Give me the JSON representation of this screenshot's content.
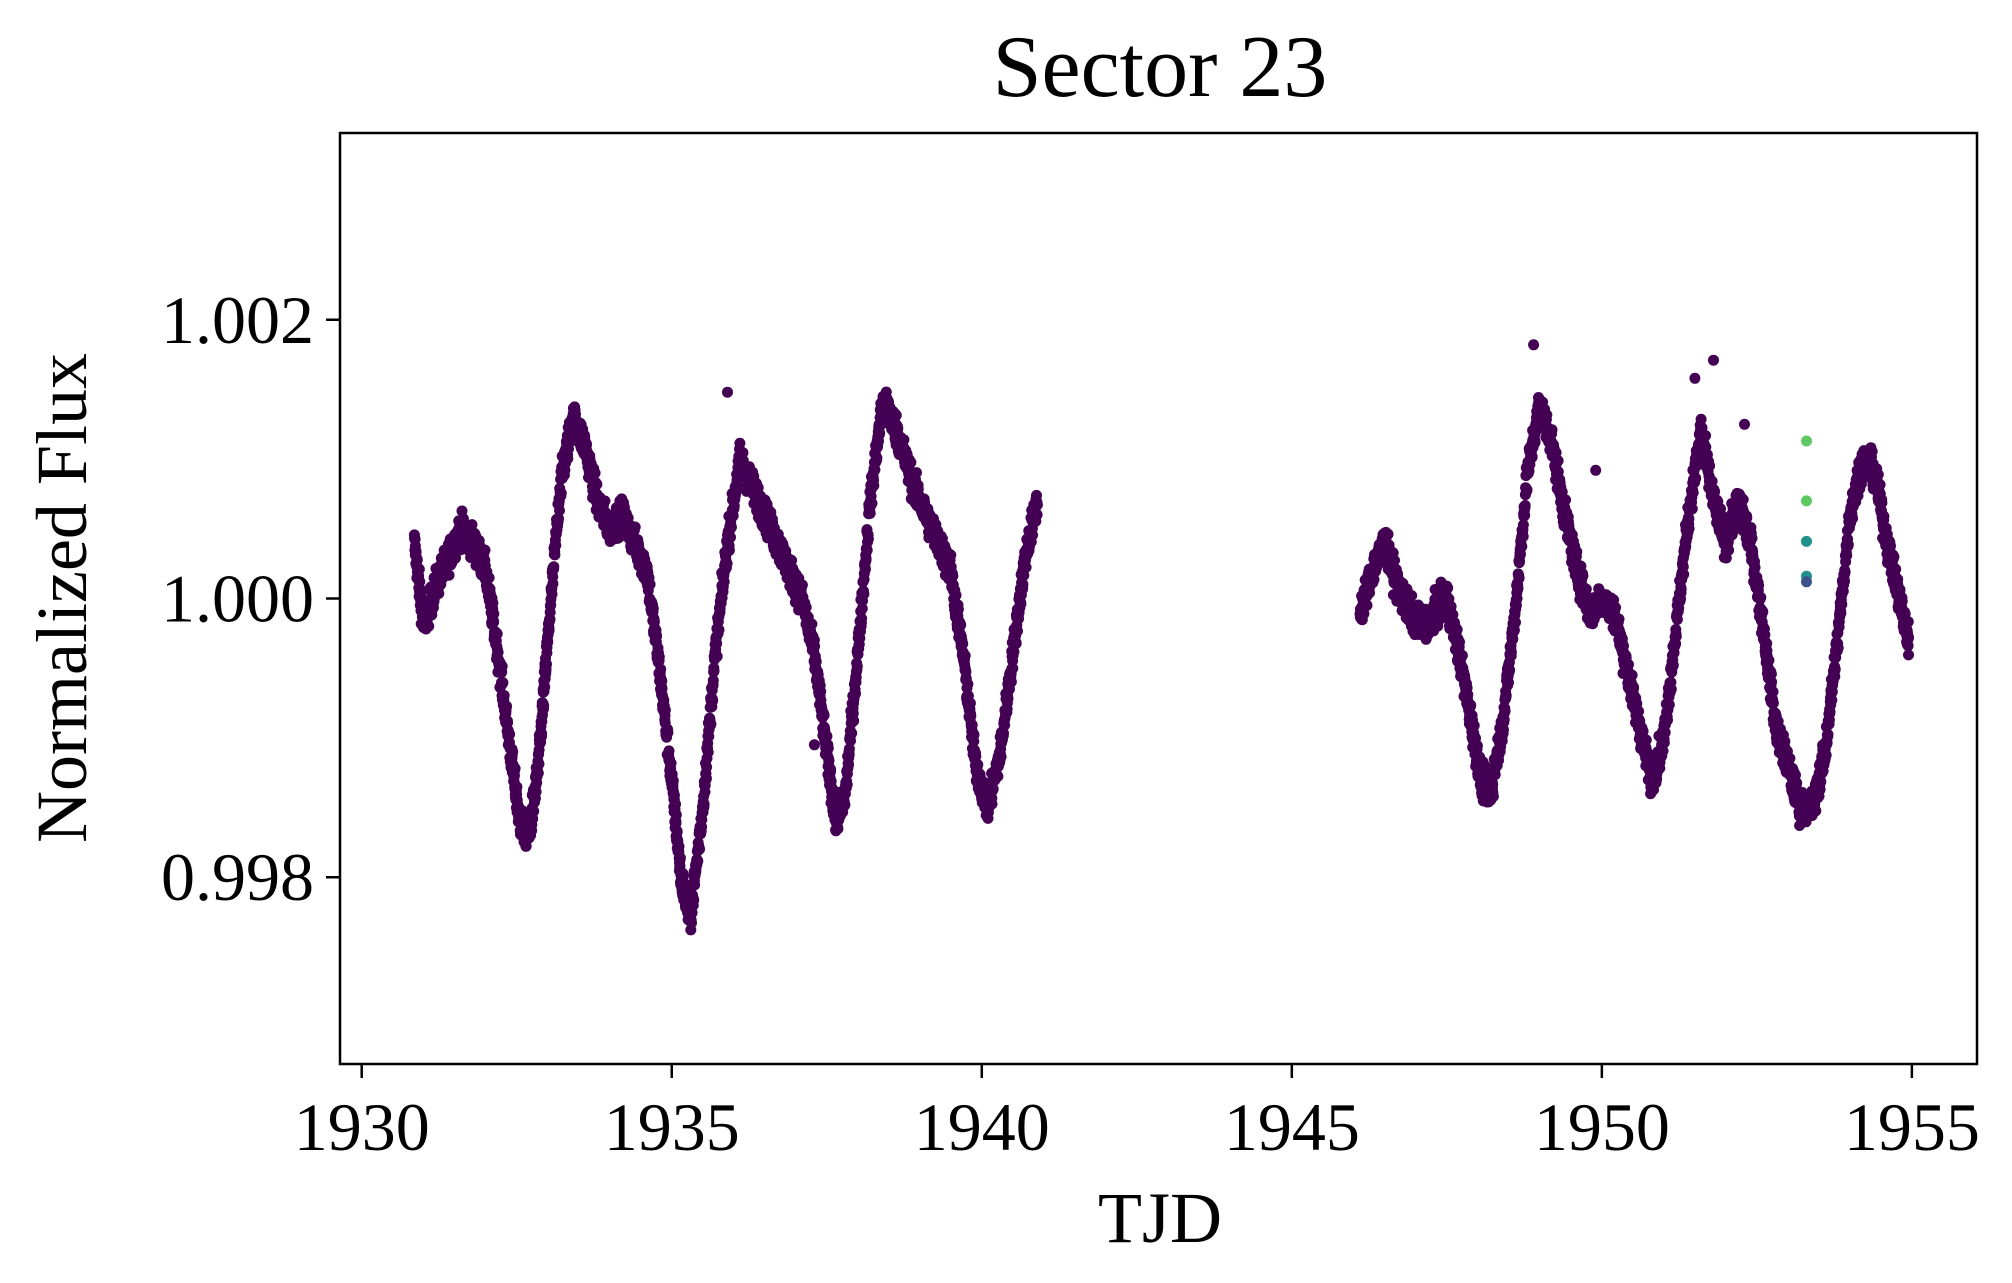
{
  "chart_data": {
    "type": "scatter",
    "title": "Sector 23",
    "xlabel": "TJD",
    "ylabel": "Normalized Flux",
    "xlim": [
      1929.65,
      1956.05
    ],
    "ylim": [
      0.99666,
      1.00334
    ],
    "xticks": [
      {
        "value": 1930,
        "label": "1930"
      },
      {
        "value": 1935,
        "label": "1935"
      },
      {
        "value": 1940,
        "label": "1940"
      },
      {
        "value": 1945,
        "label": "1945"
      },
      {
        "value": 1950,
        "label": "1950"
      },
      {
        "value": 1955,
        "label": "1955"
      }
    ],
    "yticks": [
      {
        "value": 0.998,
        "label": "0.998"
      },
      {
        "value": 1.0,
        "label": "1.000"
      },
      {
        "value": 1.002,
        "label": "1.002"
      }
    ],
    "grid": false,
    "legend": "none",
    "colormap": [
      "#440154",
      "#3b528b",
      "#21918c",
      "#5ec962"
    ],
    "point_color": "#440154",
    "series": [
      {
        "x": [
          1930.85,
          1931.0,
          1931.2,
          1931.4,
          1931.6,
          1931.8,
          1932.0,
          1932.2,
          1932.4,
          1932.55,
          1932.7,
          1932.85,
          1933.0,
          1933.2,
          1933.4,
          1933.6,
          1933.8,
          1934.0,
          1934.2,
          1934.4,
          1934.6,
          1934.8,
          1935.0,
          1935.15,
          1935.3,
          1935.5,
          1935.7,
          1935.9,
          1936.1,
          1936.3,
          1936.5,
          1936.7,
          1936.9,
          1937.1,
          1937.3,
          1937.5,
          1937.65,
          1937.8,
          1938.0,
          1938.2,
          1938.4,
          1938.55,
          1938.7,
          1938.9,
          1939.1,
          1939.3,
          1939.5,
          1939.7,
          1939.9,
          1940.1,
          1940.3,
          1940.5,
          1940.7,
          1940.9
        ],
        "y": [
          1.0004,
          0.9998,
          1.0001,
          1.0003,
          1.0005,
          1.0004,
          1.0002,
          0.9996,
          0.9989,
          0.9984,
          0.9983,
          0.9988,
          0.9997,
          1.0008,
          1.0013,
          1.0011,
          1.0007,
          1.0005,
          1.0006,
          1.0004,
          1.0002,
          0.9995,
          0.9987,
          0.998,
          0.9977,
          0.9985,
          0.9996,
          1.0004,
          1.001,
          1.0008,
          1.0006,
          1.0004,
          1.0002,
          1.0,
          0.9996,
          0.9989,
          0.9984,
          0.9986,
          0.9996,
          1.0007,
          1.0014,
          1.0013,
          1.0011,
          1.0008,
          1.0006,
          1.0004,
          1.0002,
          0.9996,
          0.9988,
          0.9985,
          0.9989,
          0.9996,
          1.0003,
          1.0007
        ]
      },
      {
        "x": [
          1946.1,
          1946.3,
          1946.5,
          1946.7,
          1946.9,
          1947.1,
          1947.3,
          1947.5,
          1947.7,
          1947.9,
          1948.05,
          1948.2,
          1948.4,
          1948.6,
          1948.8,
          1949.0,
          1949.2,
          1949.4,
          1949.6,
          1949.8,
          1950.0,
          1950.2,
          1950.4,
          1950.6,
          1950.8,
          1951.0,
          1951.2,
          1951.4,
          1951.6,
          1951.8,
          1952.0,
          1952.2,
          1952.4,
          1952.6,
          1952.8,
          1953.0,
          1953.2,
          1953.4,
          1953.6,
          1953.8,
          1954.0,
          1954.2,
          1954.4,
          1954.6,
          1954.8,
          1954.95
        ],
        "y": [
          0.9999,
          1.0002,
          1.0004,
          1.0001,
          0.9999,
          0.9998,
          0.9999,
          1.0,
          0.9996,
          0.9991,
          0.9987,
          0.9986,
          0.9991,
          0.9999,
          1.0009,
          1.0014,
          1.0011,
          1.0006,
          1.0002,
          0.9999,
          1.0,
          0.9999,
          0.9995,
          0.9991,
          0.9987,
          0.999,
          0.9998,
          1.0006,
          1.0012,
          1.0007,
          1.0004,
          1.0007,
          1.0004,
          0.9998,
          0.9991,
          0.9988,
          0.9985,
          0.9985,
          0.9989,
          0.9997,
          1.0006,
          1.001,
          1.0009,
          1.0004,
          1.0,
          0.9997
        ]
      }
    ],
    "outliers": [
      {
        "x": 1935.9,
        "y": 1.00148
      },
      {
        "x": 1951.5,
        "y": 1.00158
      },
      {
        "x": 1951.8,
        "y": 1.00171
      },
      {
        "x": 1949.9,
        "y": 1.00092
      },
      {
        "x": 1952.3,
        "y": 1.00125
      },
      {
        "x": 1948.9,
        "y": 1.00182
      },
      {
        "x": 1937.3,
        "y": 0.99895
      }
    ],
    "highlight_points": [
      {
        "x": 1953.3,
        "y": 1.00113,
        "color": "#5ec962"
      },
      {
        "x": 1953.3,
        "y": 1.0007,
        "color": "#5ec962"
      },
      {
        "x": 1953.3,
        "y": 1.00041,
        "color": "#21918c"
      },
      {
        "x": 1953.3,
        "y": 1.00016,
        "color": "#21918c"
      },
      {
        "x": 1953.3,
        "y": 1.00012,
        "color": "#3b528b"
      }
    ]
  }
}
